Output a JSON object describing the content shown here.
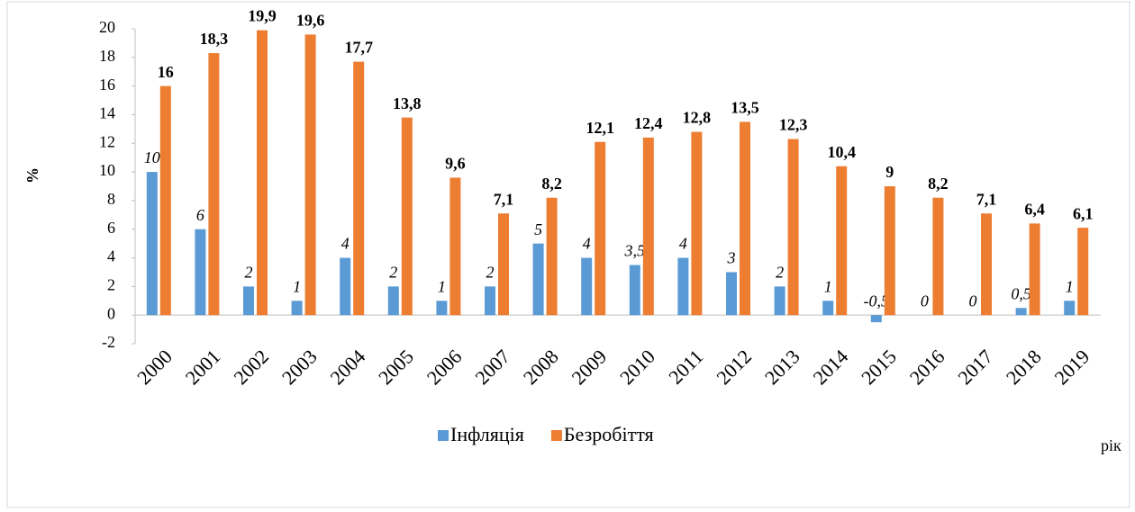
{
  "chart_data": {
    "type": "bar",
    "categories": [
      "2000",
      "2001",
      "2002",
      "2003",
      "2004",
      "2005",
      "2006",
      "2007",
      "2008",
      "2009",
      "2010",
      "2011",
      "2012",
      "2013",
      "2014",
      "2015",
      "2016",
      "2017",
      "2018",
      "2019"
    ],
    "series": [
      {
        "name": "Інфляція",
        "color": "#5b9bd5",
        "values": [
          10,
          6,
          2,
          1,
          4,
          2,
          1,
          2,
          5,
          4,
          3.5,
          4,
          3,
          2,
          1,
          -0.5,
          0,
          0,
          0.5,
          1
        ],
        "value_labels": [
          "10",
          "6",
          "2",
          "1",
          "4",
          "2",
          "1",
          "2",
          "5",
          "4",
          "3,5",
          "4",
          "3",
          "2",
          "1",
          "-0,5",
          "0",
          "0",
          "0,5",
          "1"
        ]
      },
      {
        "name": "Безробіття",
        "color": "#ed7d31",
        "values": [
          16,
          18.3,
          19.9,
          19.6,
          17.7,
          13.8,
          9.6,
          7.1,
          8.2,
          12.1,
          12.4,
          12.8,
          13.5,
          12.3,
          10.4,
          9,
          8.2,
          7.1,
          6.4,
          6.1
        ],
        "value_labels": [
          "16",
          "18,3",
          "19,9",
          "19,6",
          "17,7",
          "13,8",
          "9,6",
          "7,1",
          "8,2",
          "12,1",
          "12,4",
          "12,8",
          "13,5",
          "12,3",
          "10,4",
          "9",
          "8,2",
          "7,1",
          "6,4",
          "6,1"
        ]
      }
    ],
    "y_label": "%",
    "x_label": "рік",
    "ylim": [
      -2,
      20
    ],
    "yticks": [
      -2,
      0,
      2,
      4,
      6,
      8,
      10,
      12,
      14,
      16,
      18,
      20
    ],
    "legend": "bottom"
  }
}
